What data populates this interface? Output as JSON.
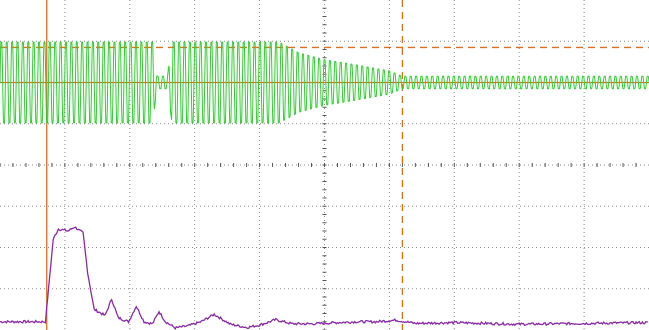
{
  "chart_data": {
    "type": "line",
    "title": "",
    "xlabel": "",
    "ylabel": "",
    "grid": true,
    "legend": "none",
    "x_divisions": 10,
    "y_divisions": 8,
    "xlim": [
      0,
      10
    ],
    "ylim": [
      0,
      8
    ],
    "cursors": {
      "vertical_solid_div": 0.72,
      "vertical_dashed_div": 6.2,
      "horizontal_solid_div": 6.0,
      "horizontal_dashed_div": 6.85
    },
    "series": [
      {
        "color": "#33cc33",
        "kind": "oscillation",
        "center_div": 6.0,
        "period_div": 0.083,
        "envelope": [
          [
            0.0,
            0.98
          ],
          [
            2.35,
            0.98
          ],
          [
            2.42,
            0.15
          ],
          [
            2.58,
            0.15
          ],
          [
            2.65,
            0.98
          ],
          [
            4.3,
            0.98
          ],
          [
            4.6,
            0.72
          ],
          [
            5.0,
            0.55
          ],
          [
            5.4,
            0.45
          ],
          [
            6.0,
            0.28
          ],
          [
            6.2,
            0.15
          ],
          [
            10.0,
            0.15
          ]
        ]
      },
      {
        "color": "#882ba3",
        "kind": "pulse",
        "points": [
          [
            0.0,
            0.2
          ],
          [
            0.7,
            0.2
          ],
          [
            0.82,
            2.2
          ],
          [
            0.9,
            2.45
          ],
          [
            1.05,
            2.4
          ],
          [
            1.15,
            2.5
          ],
          [
            1.28,
            2.35
          ],
          [
            1.35,
            1.4
          ],
          [
            1.45,
            0.5
          ],
          [
            1.62,
            0.35
          ],
          [
            1.72,
            0.75
          ],
          [
            1.82,
            0.3
          ],
          [
            1.98,
            0.2
          ],
          [
            2.1,
            0.58
          ],
          [
            2.22,
            0.2
          ],
          [
            2.35,
            0.15
          ],
          [
            2.45,
            0.45
          ],
          [
            2.55,
            0.2
          ],
          [
            2.7,
            0.05
          ],
          [
            2.9,
            0.1
          ],
          [
            3.1,
            0.2
          ],
          [
            3.3,
            0.38
          ],
          [
            3.55,
            0.14
          ],
          [
            3.8,
            0.06
          ],
          [
            4.0,
            0.12
          ],
          [
            4.25,
            0.25
          ],
          [
            4.5,
            0.15
          ],
          [
            4.8,
            0.15
          ],
          [
            5.2,
            0.18
          ],
          [
            5.5,
            0.2
          ],
          [
            5.8,
            0.2
          ],
          [
            6.1,
            0.24
          ],
          [
            6.4,
            0.16
          ],
          [
            7.0,
            0.18
          ],
          [
            8.0,
            0.14
          ],
          [
            9.0,
            0.16
          ],
          [
            10.0,
            0.18
          ]
        ]
      }
    ]
  }
}
